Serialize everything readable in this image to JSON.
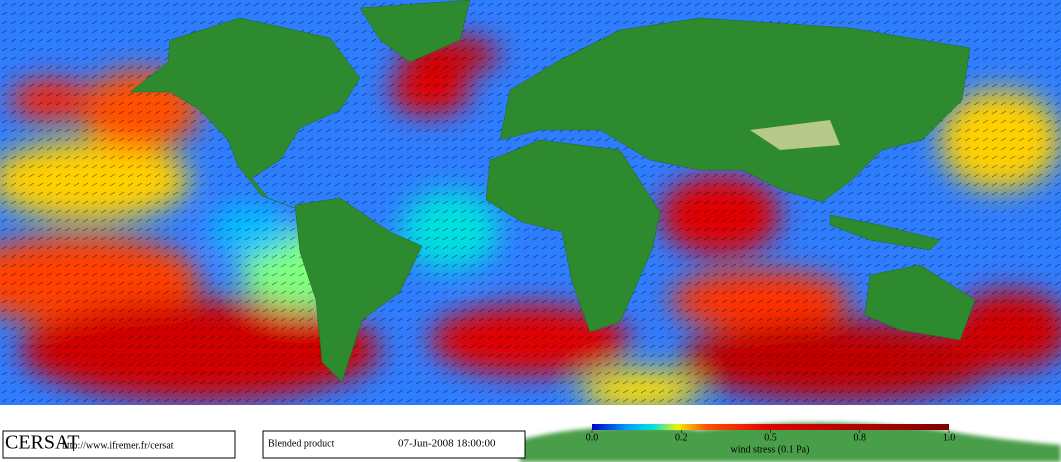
{
  "logo": "CERSAT",
  "url": "http://www.ifremer.fr/cersat",
  "product": "Blended product",
  "timestamp": "07-Jun-2008 18:00:00",
  "colorbar": {
    "label": "wind stress (0.1 Pa)",
    "ticks": [
      {
        "value": 0,
        "label": "0.0"
      },
      0.2,
      0.5,
      0.8,
      {
        "value": 1,
        "label": "1.0"
      }
    ]
  }
}
